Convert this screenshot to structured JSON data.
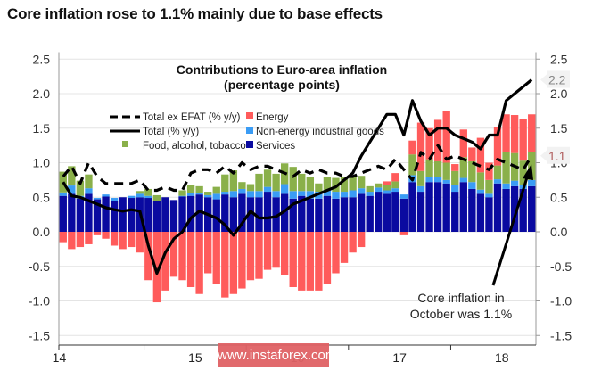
{
  "header": {
    "title": "Core inflation rose to 1.1% mainly due to base effects"
  },
  "watermark": "www.instaforex.com",
  "colors": {
    "energy": "#ff5b5b",
    "non_energy_industrial_goods": "#3a9cf5",
    "food_alcohol_tobacco": "#8ab04a",
    "services": "#0a0aa0",
    "total": "#000000",
    "total_ex_efat": "#000000",
    "label_total": "#888888",
    "label_core": "#b26060"
  },
  "chart_data": {
    "type": "bar",
    "stacked": true,
    "title": "Contributions to Euro-area inflation",
    "subtitle": "(percentage points)",
    "xlabel": "",
    "ylabel": "",
    "ylim": [
      -1.6,
      2.6
    ],
    "yticks": [
      "2.5",
      "2.0",
      "1.5",
      "1.0",
      "0.5",
      "0.0",
      "-0.5",
      "-1.0",
      "-1.5"
    ],
    "ytick_values": [
      2.5,
      2.0,
      1.5,
      1.0,
      0.5,
      0.0,
      -0.5,
      -1.0,
      -1.5
    ],
    "xtick_labels": [
      "14",
      "15",
      "16",
      "17",
      "18"
    ],
    "grid": true,
    "legend_position": "top-left",
    "legend": [
      {
        "key": "ex_efat",
        "label": "Total ex EFAT (% y/y)",
        "style": "dashed-line"
      },
      {
        "key": "energy",
        "label": "Energy",
        "style": "square"
      },
      {
        "key": "total",
        "label": "Total (% y/y)",
        "style": "solid-line"
      },
      {
        "key": "neig",
        "label": "Non-energy industrial goods",
        "style": "square"
      },
      {
        "key": "food",
        "label": "Food, alcohol, tobacco",
        "style": "square"
      },
      {
        "key": "services",
        "label": "Services",
        "style": "square"
      }
    ],
    "x_start": "2014-03",
    "x_end": "2018-10",
    "series": [
      {
        "name": "Services",
        "key": "services",
        "values": [
          0.52,
          0.55,
          0.48,
          0.55,
          0.47,
          0.51,
          0.45,
          0.5,
          0.49,
          0.5,
          0.49,
          0.45,
          0.5,
          0.46,
          0.51,
          0.52,
          0.54,
          0.5,
          0.47,
          0.54,
          0.5,
          0.55,
          0.5,
          0.5,
          0.58,
          0.5,
          0.55,
          0.48,
          0.52,
          0.48,
          0.48,
          0.52,
          0.48,
          0.5,
          0.5,
          0.55,
          0.52,
          0.58,
          0.55,
          0.58,
          0.48,
          0.72,
          0.58,
          0.72,
          0.72,
          0.7,
          0.58,
          0.72,
          0.62,
          0.55,
          0.5,
          0.7,
          0.62,
          0.66,
          0.62,
          0.66
        ]
      },
      {
        "name": "Non-energy industrial goods",
        "key": "neig",
        "values": [
          0.05,
          0.12,
          0.04,
          0.08,
          0.02,
          0.03,
          0.04,
          0.0,
          0.03,
          0.05,
          0.03,
          0.0,
          0.0,
          0.0,
          0.01,
          0.04,
          0.02,
          0.03,
          0.08,
          0.04,
          0.09,
          0.07,
          0.09,
          0.09,
          0.07,
          0.09,
          0.14,
          0.11,
          0.07,
          0.11,
          0.1,
          0.08,
          0.1,
          0.08,
          0.1,
          0.08,
          0.06,
          0.06,
          0.05,
          0.05,
          0.06,
          0.1,
          0.08,
          0.08,
          0.08,
          0.05,
          0.1,
          0.06,
          0.1,
          0.06,
          0.05,
          0.06,
          0.08,
          0.08,
          0.06,
          0.09
        ]
      },
      {
        "name": "Food, alcohol, tobacco",
        "key": "food",
        "values": [
          0.3,
          0.28,
          0.22,
          0.2,
          0.0,
          0.0,
          0.0,
          0.0,
          0.0,
          0.04,
          0.1,
          0.08,
          0.0,
          0.0,
          0.08,
          0.12,
          0.1,
          0.05,
          0.1,
          0.25,
          0.3,
          0.1,
          0.1,
          0.25,
          0.25,
          0.25,
          0.3,
          0.35,
          0.25,
          0.2,
          0.12,
          0.2,
          0.2,
          0.22,
          0.22,
          0.18,
          0.08,
          0.06,
          0.08,
          0.1,
          0.0,
          0.3,
          0.22,
          0.25,
          0.22,
          0.25,
          0.2,
          0.3,
          0.3,
          0.25,
          0.2,
          0.2,
          0.45,
          0.4,
          0.35,
          0.4
        ]
      },
      {
        "name": "Energy",
        "key": "energy",
        "values": [
          -0.15,
          -0.25,
          -0.22,
          -0.18,
          -0.05,
          -0.1,
          -0.2,
          -0.25,
          -0.22,
          -0.3,
          -0.7,
          -1.02,
          -0.85,
          -0.65,
          -0.7,
          -0.8,
          -0.9,
          -0.6,
          -0.75,
          -0.95,
          -0.9,
          -0.82,
          -0.7,
          -0.68,
          -0.55,
          -0.52,
          -0.62,
          -0.8,
          -0.85,
          -0.85,
          -0.85,
          -0.75,
          -0.6,
          -0.45,
          -0.3,
          -0.22,
          0.0,
          0.0,
          0.05,
          0.12,
          -0.05,
          0.2,
          0.7,
          0.45,
          0.6,
          0.75,
          0.1,
          0.4,
          0.2,
          0.5,
          0.25,
          0.55,
          0.55,
          0.55,
          0.6,
          0.55
        ]
      }
    ],
    "lines": [
      {
        "name": "Total (% y/y)",
        "key": "total",
        "style": "solid",
        "values": [
          0.72,
          0.52,
          0.5,
          0.45,
          0.4,
          0.35,
          0.32,
          0.3,
          0.32,
          0.3,
          -0.2,
          -0.6,
          -0.3,
          -0.1,
          0.0,
          0.2,
          0.3,
          0.25,
          0.2,
          0.1,
          -0.05,
          0.12,
          0.3,
          0.2,
          0.2,
          0.22,
          0.3,
          0.4,
          0.45,
          0.5,
          0.55,
          0.6,
          0.65,
          0.75,
          0.85,
          1.1,
          1.3,
          1.5,
          1.7,
          1.7,
          1.4,
          1.9,
          1.6,
          1.4,
          1.5,
          1.5,
          1.4,
          1.35,
          1.3,
          1.2,
          1.4,
          1.4,
          1.9,
          2.0,
          2.1,
          2.2
        ]
      },
      {
        "name": "Total ex EFAT (% y/y)",
        "key": "ex_efat",
        "style": "dashed",
        "values": [
          0.8,
          0.95,
          0.7,
          1.0,
          0.8,
          0.7,
          0.7,
          0.7,
          0.7,
          0.75,
          0.6,
          0.6,
          0.65,
          0.6,
          0.6,
          0.85,
          0.9,
          0.9,
          0.85,
          0.95,
          0.85,
          1.0,
          0.9,
          0.95,
          0.95,
          0.9,
          0.85,
          0.8,
          0.9,
          0.85,
          0.9,
          0.85,
          0.85,
          0.8,
          0.8,
          0.85,
          0.9,
          0.95,
          0.9,
          1.05,
          0.9,
          0.75,
          1.15,
          1.05,
          1.25,
          1.05,
          1.1,
          1.05,
          1.0,
          0.95,
          0.9,
          1.05,
          1.0,
          0.95,
          0.9,
          1.1
        ]
      }
    ],
    "end_labels": [
      {
        "series": "total",
        "text": "2.2",
        "value": 2.2
      },
      {
        "series": "ex_efat",
        "text": "1.1",
        "value": 1.1
      }
    ],
    "annotation": {
      "line1": "Core inflation in",
      "line2": "October was 1.1%"
    }
  }
}
